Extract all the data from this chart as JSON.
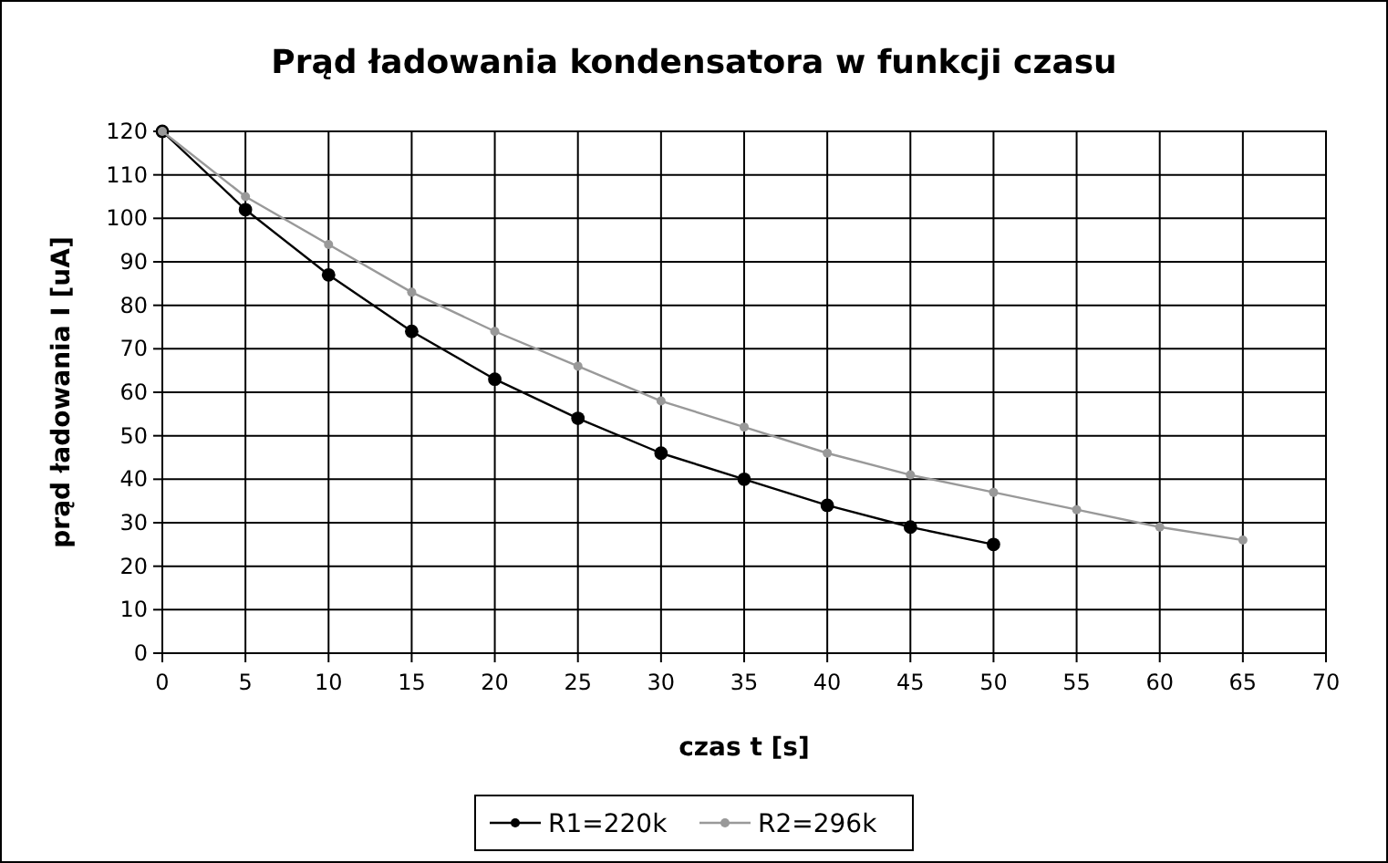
{
  "chart_data": {
    "type": "line",
    "title": "Prąd ładowania kondensatora w funkcji czasu",
    "xlabel": "czas t [s]",
    "ylabel": "prąd ładowania I [uA]",
    "xlim": [
      0,
      70
    ],
    "xticks": [
      0,
      5,
      10,
      15,
      20,
      25,
      30,
      35,
      40,
      45,
      50,
      55,
      60,
      65,
      70
    ],
    "ylim": [
      0,
      120
    ],
    "yticks": [
      0,
      10,
      20,
      30,
      40,
      50,
      60,
      70,
      80,
      90,
      100,
      110,
      120
    ],
    "grid": true,
    "legend": "bottom",
    "marker": "circle",
    "line_style": "solid",
    "series": [
      {
        "name": "R1=220k",
        "color": "#000000",
        "x": [
          0,
          5,
          10,
          15,
          20,
          25,
          30,
          35,
          40,
          45,
          50
        ],
        "values": [
          120,
          102,
          87,
          74,
          63,
          54,
          46,
          40,
          34,
          29,
          25
        ]
      },
      {
        "name": "R2=296k",
        "color": "#999999",
        "x": [
          0,
          5,
          10,
          15,
          20,
          25,
          30,
          35,
          40,
          45,
          50,
          55,
          60,
          65
        ],
        "values": [
          120,
          105,
          94,
          83,
          74,
          66,
          58,
          52,
          46,
          41,
          37,
          33,
          29,
          26
        ]
      }
    ]
  }
}
